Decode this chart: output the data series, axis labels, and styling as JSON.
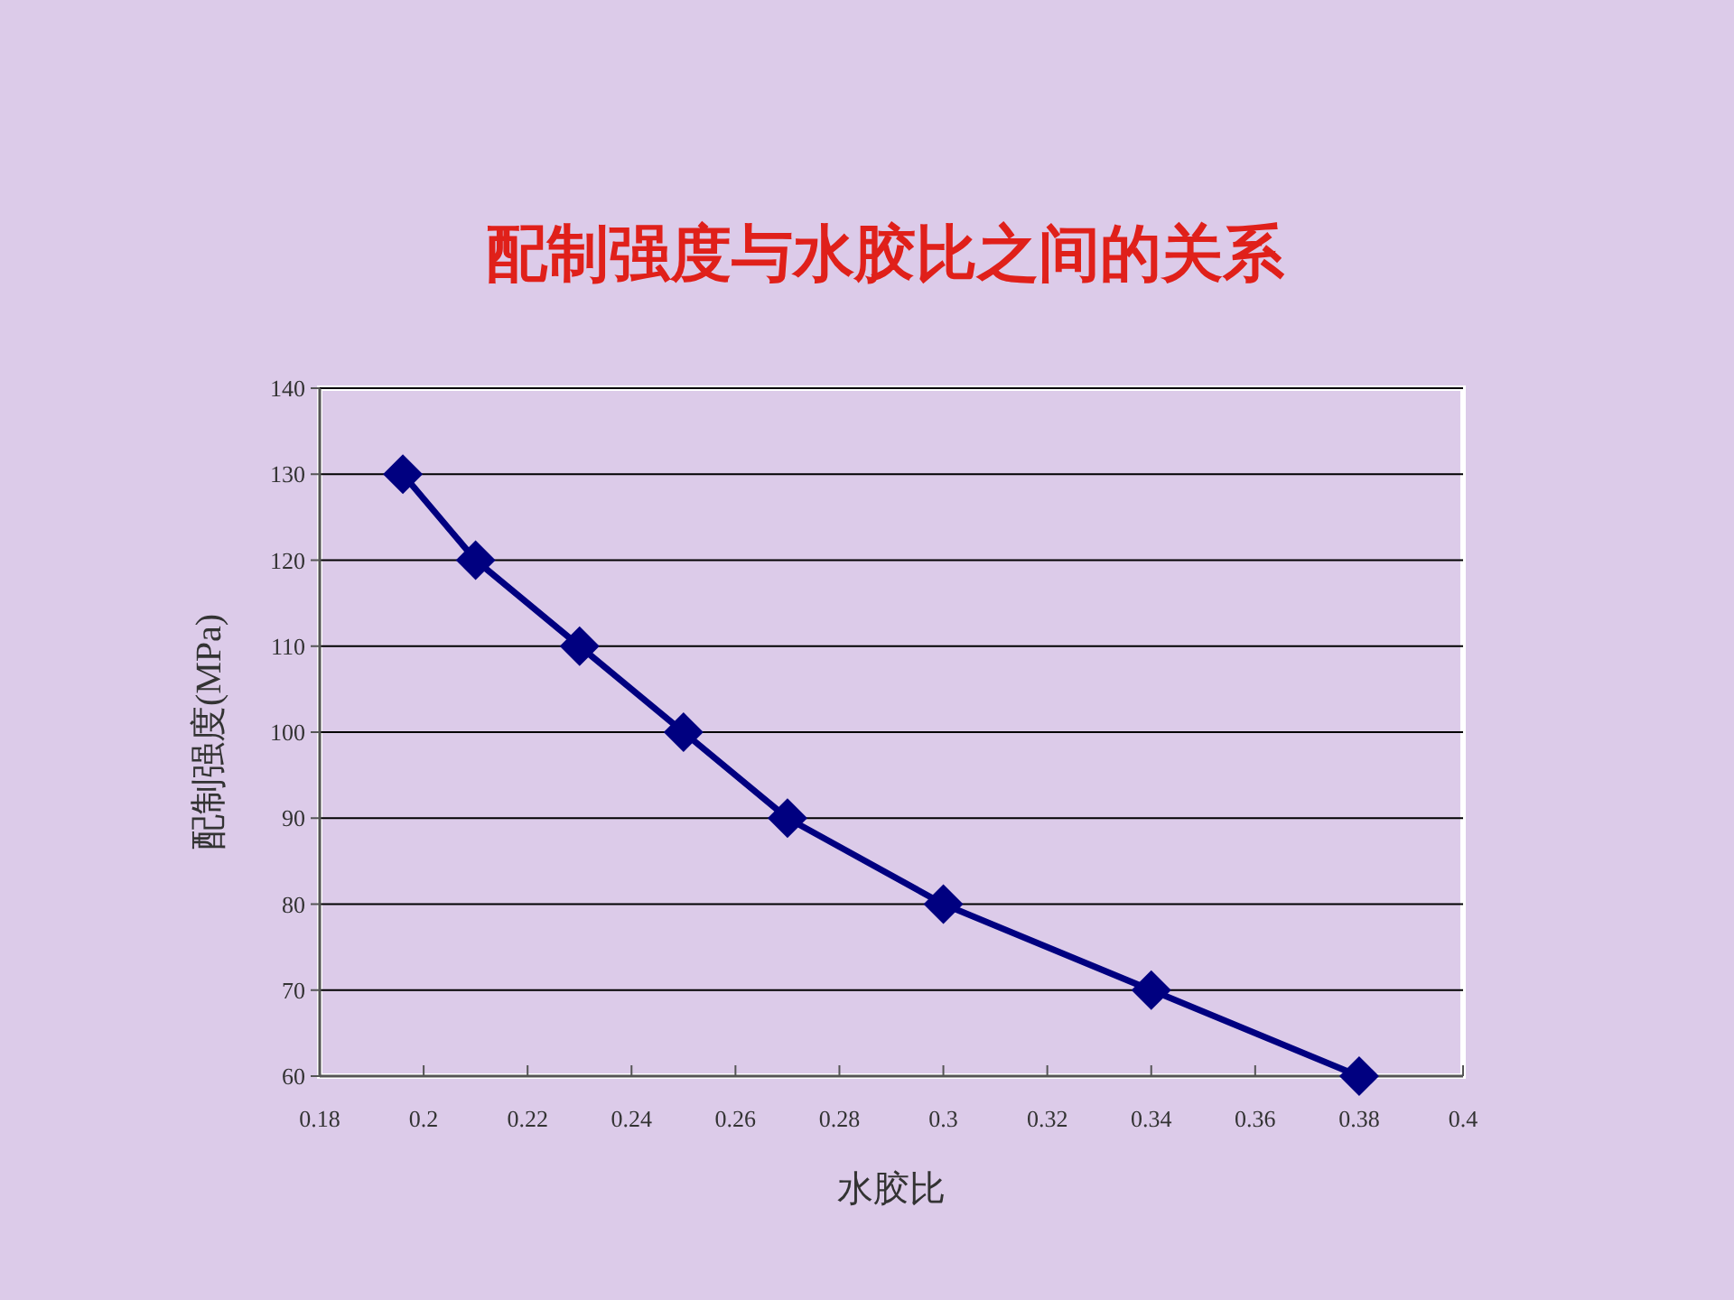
{
  "chart_data": {
    "type": "line",
    "title": "配制强度与水胶比之间的关系",
    "xlabel": "水胶比",
    "ylabel": "配制强度(MPa)",
    "x": [
      0.196,
      0.21,
      0.23,
      0.25,
      0.27,
      0.3,
      0.34,
      0.38
    ],
    "series": [
      {
        "color": "#000080",
        "values": [
          130,
          120,
          110,
          100,
          90,
          80,
          70,
          60
        ]
      }
    ],
    "xlim": [
      0.18,
      0.4
    ],
    "xticks": [
      0.18,
      0.2,
      0.22,
      0.24,
      0.26,
      0.28,
      0.3,
      0.32,
      0.34,
      0.36,
      0.38,
      0.4
    ],
    "ylim": [
      60,
      140
    ],
    "yticks": [
      60,
      70,
      80,
      90,
      100,
      110,
      120,
      130,
      140
    ],
    "grid": "y",
    "marker": "diamond"
  }
}
